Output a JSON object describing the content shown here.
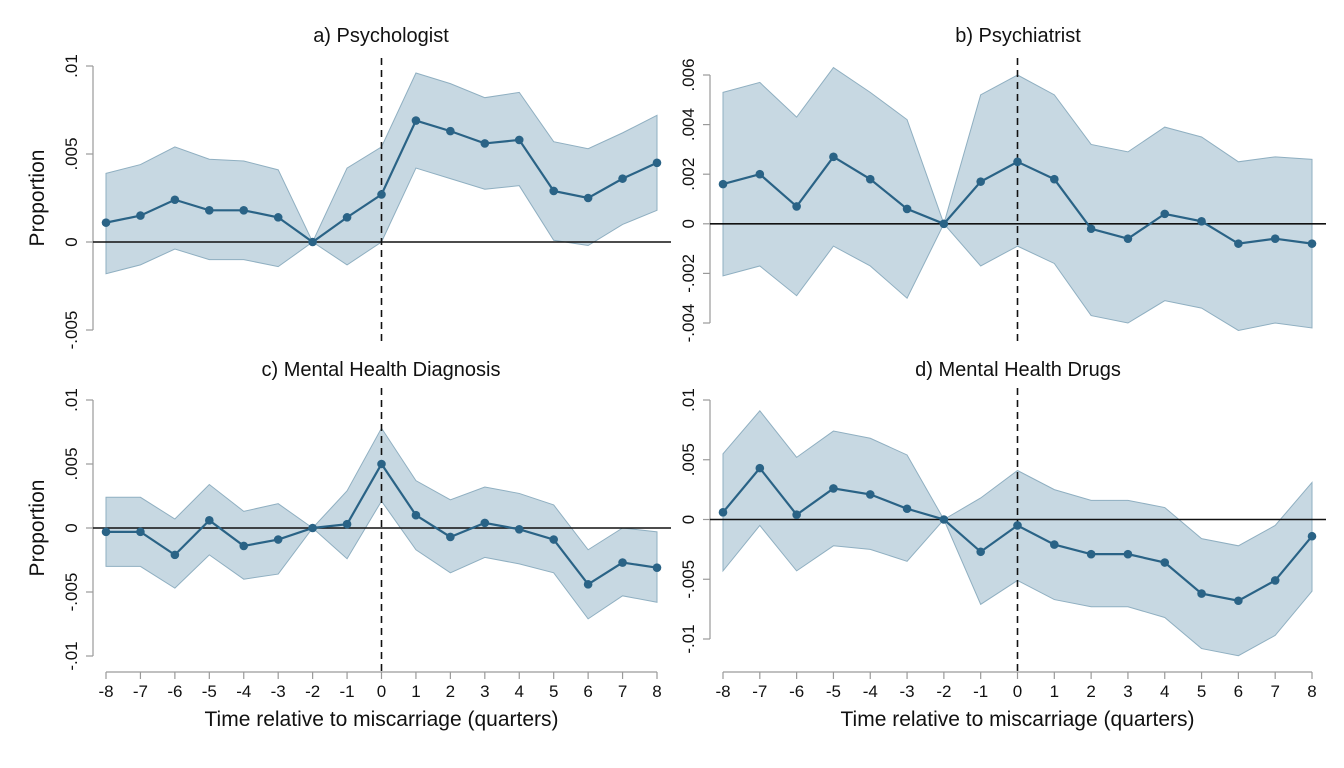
{
  "chart_data": [
    {
      "type": "line",
      "title": "a) Psychologist",
      "xlabel": "Time relative to miscarriage (quarters)",
      "ylabel": "Proportion",
      "x": [
        -8,
        -7,
        -6,
        -5,
        -4,
        -3,
        -2,
        -1,
        0,
        1,
        2,
        3,
        4,
        5,
        6,
        7,
        8
      ],
      "xticks": [
        "-8",
        "-7",
        "-6",
        "-5",
        "-4",
        "-3",
        "-2",
        "-1",
        "0",
        "1",
        "2",
        "3",
        "4",
        "5",
        "6",
        "7",
        "8"
      ],
      "ylim": [
        -0.005,
        0.01
      ],
      "yticks": [
        -0.005,
        0,
        0.005,
        0.01
      ],
      "ytick_labels": [
        "-.005",
        "0",
        ".005",
        ".01"
      ],
      "event_line_x": 0,
      "series": [
        {
          "name": "estimate",
          "values": [
            0.0011,
            0.0015,
            0.0024,
            0.0018,
            0.0018,
            0.0014,
            0.0,
            0.0014,
            0.0027,
            0.0069,
            0.0063,
            0.0056,
            0.0058,
            0.0029,
            0.0025,
            0.0036,
            0.0045
          ]
        },
        {
          "name": "ci_upper",
          "values": [
            0.0039,
            0.0044,
            0.0054,
            0.0047,
            0.0046,
            0.0041,
            0.0,
            0.0042,
            0.0054,
            0.0096,
            0.009,
            0.0082,
            0.0085,
            0.0057,
            0.0053,
            0.0062,
            0.0072
          ]
        },
        {
          "name": "ci_lower",
          "values": [
            -0.0018,
            -0.0013,
            -0.0004,
            -0.001,
            -0.001,
            -0.0014,
            0.0,
            -0.0013,
            0.0,
            0.0042,
            0.0036,
            0.003,
            0.0032,
            0.0001,
            -0.0002,
            0.001,
            0.0018
          ]
        }
      ],
      "ylabel_visible": true
    },
    {
      "type": "line",
      "title": "b) Psychiatrist",
      "xlabel": "",
      "ylabel": "",
      "x": [
        -8,
        -7,
        -6,
        -5,
        -4,
        -3,
        -2,
        -1,
        0,
        1,
        2,
        3,
        4,
        5,
        6,
        7,
        8
      ],
      "xticks": [],
      "ylim": [
        -0.004,
        0.006
      ],
      "yticks": [
        -0.004,
        -0.002,
        0,
        0.002,
        0.004,
        0.006
      ],
      "ytick_labels": [
        "-.004",
        "-.002",
        "0",
        ".002",
        ".004",
        ".006"
      ],
      "event_line_x": 0,
      "series": [
        {
          "name": "estimate",
          "values": [
            0.0016,
            0.002,
            0.0007,
            0.0027,
            0.0018,
            0.0006,
            0.0,
            0.0017,
            0.0025,
            0.0018,
            -0.0002,
            -0.0006,
            0.0004,
            0.0001,
            -0.0008,
            -0.0006,
            -0.0008
          ]
        },
        {
          "name": "ci_upper",
          "values": [
            0.0053,
            0.0057,
            0.0043,
            0.0063,
            0.0053,
            0.0042,
            0.0,
            0.0052,
            0.006,
            0.0052,
            0.0032,
            0.0029,
            0.0039,
            0.0035,
            0.0025,
            0.0027,
            0.0026
          ]
        },
        {
          "name": "ci_lower",
          "values": [
            -0.0021,
            -0.0017,
            -0.0029,
            -0.0009,
            -0.0017,
            -0.003,
            0.0,
            -0.0017,
            -0.0009,
            -0.0016,
            -0.0037,
            -0.004,
            -0.0031,
            -0.0034,
            -0.0043,
            -0.004,
            -0.0042
          ]
        }
      ],
      "ylabel_visible": false
    },
    {
      "type": "line",
      "title": "c) Mental Health Diagnosis",
      "xlabel": "Time relative to miscarriage (quarters)",
      "ylabel": "Proportion",
      "x": [
        -8,
        -7,
        -6,
        -5,
        -4,
        -3,
        -2,
        -1,
        0,
        1,
        2,
        3,
        4,
        5,
        6,
        7,
        8
      ],
      "xticks": [
        "-8",
        "-7",
        "-6",
        "-5",
        "-4",
        "-3",
        "-2",
        "-1",
        "0",
        "1",
        "2",
        "3",
        "4",
        "5",
        "6",
        "7",
        "8"
      ],
      "ylim": [
        -0.01,
        0.01
      ],
      "yticks": [
        -0.01,
        -0.005,
        0,
        0.005,
        0.01
      ],
      "ytick_labels": [
        "-.01",
        "-.005",
        "0",
        ".005",
        ".01"
      ],
      "event_line_x": 0,
      "series": [
        {
          "name": "estimate",
          "values": [
            -0.0003,
            -0.0003,
            -0.0021,
            0.0006,
            -0.0014,
            -0.0009,
            0.0,
            0.0003,
            0.005,
            0.001,
            -0.0007,
            0.0004,
            -0.0001,
            -0.0009,
            -0.0044,
            -0.0027,
            -0.0031
          ]
        },
        {
          "name": "ci_upper",
          "values": [
            0.0024,
            0.0024,
            0.0007,
            0.0034,
            0.0013,
            0.0019,
            0.0,
            0.0029,
            0.0078,
            0.0037,
            0.0022,
            0.0032,
            0.0027,
            0.0018,
            -0.0017,
            0.0,
            -0.0003
          ]
        },
        {
          "name": "ci_lower",
          "values": [
            -0.003,
            -0.003,
            -0.0047,
            -0.0021,
            -0.004,
            -0.0036,
            0.0,
            -0.0024,
            0.0021,
            -0.0017,
            -0.0035,
            -0.0023,
            -0.0028,
            -0.0035,
            -0.0071,
            -0.0053,
            -0.0058
          ]
        }
      ],
      "ylabel_visible": true
    },
    {
      "type": "line",
      "title": "d) Mental Health Drugs",
      "xlabel": "Time relative to miscarriage (quarters)",
      "ylabel": "",
      "x": [
        -8,
        -7,
        -6,
        -5,
        -4,
        -3,
        -2,
        -1,
        0,
        1,
        2,
        3,
        4,
        5,
        6,
        7,
        8
      ],
      "xticks": [
        "-8",
        "-7",
        "-6",
        "-5",
        "-4",
        "-3",
        "-2",
        "-1",
        "0",
        "1",
        "2",
        "3",
        "4",
        "5",
        "6",
        "7",
        "8"
      ],
      "ylim": [
        -0.01,
        0.01
      ],
      "yticks": [
        -0.01,
        -0.005,
        0,
        0.005,
        0.01
      ],
      "ytick_labels": [
        "-.01",
        "-.005",
        "0",
        ".005",
        ".01"
      ],
      "event_line_x": 0,
      "series": [
        {
          "name": "estimate",
          "values": [
            0.0006,
            0.0043,
            0.0004,
            0.0026,
            0.0021,
            0.0009,
            0.0,
            -0.0027,
            -0.0005,
            -0.0021,
            -0.0029,
            -0.0029,
            -0.0036,
            -0.0062,
            -0.0068,
            -0.0051,
            -0.0014
          ]
        },
        {
          "name": "ci_upper",
          "values": [
            0.0055,
            0.0091,
            0.0052,
            0.0074,
            0.0068,
            0.0054,
            0.0,
            0.0018,
            0.0041,
            0.0025,
            0.0016,
            0.0016,
            0.001,
            -0.0016,
            -0.0022,
            -0.0005,
            0.0031
          ]
        },
        {
          "name": "ci_lower",
          "values": [
            -0.0043,
            -0.0005,
            -0.0043,
            -0.0022,
            -0.0025,
            -0.0035,
            0.0,
            -0.0071,
            -0.0051,
            -0.0067,
            -0.0073,
            -0.0073,
            -0.0082,
            -0.0108,
            -0.0114,
            -0.0097,
            -0.006
          ]
        }
      ],
      "ylabel_visible": false
    }
  ]
}
